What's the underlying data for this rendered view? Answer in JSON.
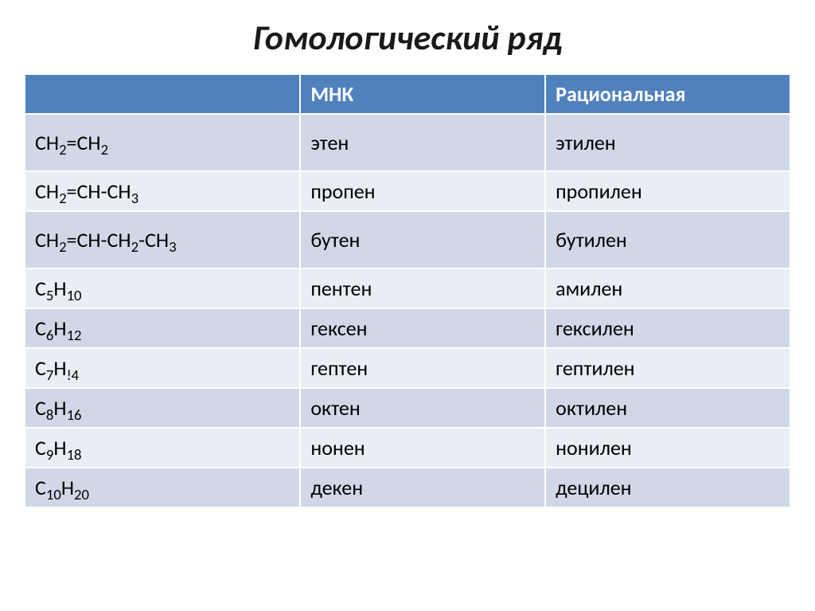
{
  "title": "Гомологический ряд",
  "table": {
    "columns": [
      "",
      "МНК",
      "Рациональная"
    ],
    "rows": [
      {
        "formula": [
          [
            "CH",
            "2"
          ],
          [
            "=CH",
            "2"
          ]
        ],
        "mnk": "этен",
        "rational": "этилен",
        "band": "a",
        "tall": true
      },
      {
        "formula": [
          [
            "CH",
            "2"
          ],
          [
            "=CH-CH",
            "3"
          ]
        ],
        "mnk": "пропен",
        "rational": "пропилен",
        "band": "b",
        "tall": false
      },
      {
        "formula": [
          [
            "CH",
            "2"
          ],
          [
            "=CH-CH",
            "2"
          ],
          [
            "-CH",
            "3"
          ]
        ],
        "mnk": "бутен",
        "rational": "бутилен",
        "band": "a",
        "tall": true
      },
      {
        "formula": [
          [
            "C",
            "5"
          ],
          [
            "H",
            "10"
          ]
        ],
        "mnk": "пентен",
        "rational": "амилен",
        "band": "b",
        "tall": false
      },
      {
        "formula": [
          [
            "C",
            "6"
          ],
          [
            "H",
            "12"
          ]
        ],
        "mnk": "гексен",
        "rational": "гексилен",
        "band": "a",
        "tall": false
      },
      {
        "formula": [
          [
            "C",
            "7"
          ],
          [
            "H",
            "!4"
          ]
        ],
        "mnk": "гептен",
        "rational": "гептилен",
        "band": "b",
        "tall": false
      },
      {
        "formula": [
          [
            "C",
            "8"
          ],
          [
            "H",
            "16"
          ]
        ],
        "mnk": "октен",
        "rational": "октилен",
        "band": "a",
        "tall": false
      },
      {
        "formula": [
          [
            "C",
            "9"
          ],
          [
            "H",
            "18"
          ]
        ],
        "mnk": "нонен",
        "rational": "нонилен",
        "band": "b",
        "tall": false
      },
      {
        "formula": [
          [
            "C",
            "10"
          ],
          [
            "H",
            "20"
          ]
        ],
        "mnk": "декен",
        "rational": "децилен",
        "band": "a",
        "tall": false
      }
    ]
  }
}
